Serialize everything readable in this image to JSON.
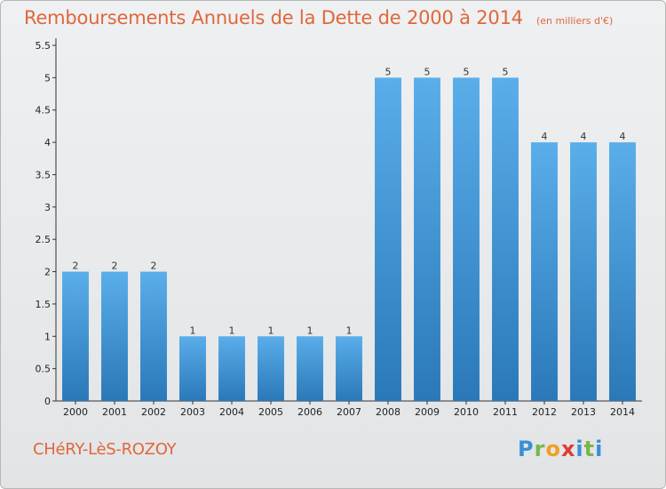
{
  "header": {
    "title": "Remboursements Annuels de la Dette de 2000 à 2014",
    "unit": "(en milliers d'€)"
  },
  "footer": {
    "commune": "CHéRY-LèS-ROZOY",
    "logo": {
      "letters": [
        "P",
        "r",
        "o",
        "x",
        "i",
        "t",
        "i"
      ],
      "colors": [
        "#3b8fd6",
        "#7ab648",
        "#f0a020",
        "#e03c31",
        "#3b8fd6",
        "#7ab648",
        "#3b8fd6"
      ]
    }
  },
  "colors": {
    "bar_top": "#5aaeea",
    "bar_bottom": "#2a78b8",
    "axis": "#333333",
    "grid": "#d0d2d4"
  },
  "chart_data": {
    "type": "bar",
    "title": "Remboursements Annuels de la Dette de 2000 à 2014",
    "subtitle": "(en milliers d'€)",
    "categories": [
      "2000",
      "2001",
      "2002",
      "2003",
      "2004",
      "2005",
      "2006",
      "2007",
      "2008",
      "2009",
      "2010",
      "2011",
      "2012",
      "2013",
      "2014"
    ],
    "values": [
      2,
      2,
      2,
      1,
      1,
      1,
      1,
      1,
      5,
      5,
      5,
      5,
      4,
      4,
      4
    ],
    "yticks": [
      "0",
      "0.5",
      "1",
      "1.5",
      "2",
      "2.5",
      "3",
      "3.5",
      "4",
      "4.5",
      "5",
      "5.5"
    ],
    "ytick_values": [
      0,
      0.5,
      1,
      1.5,
      2,
      2.5,
      3,
      3.5,
      4,
      4.5,
      5,
      5.5
    ],
    "ylim": [
      0,
      5.5
    ],
    "xlabel": "",
    "ylabel": "",
    "grid": false,
    "legend": "none"
  }
}
